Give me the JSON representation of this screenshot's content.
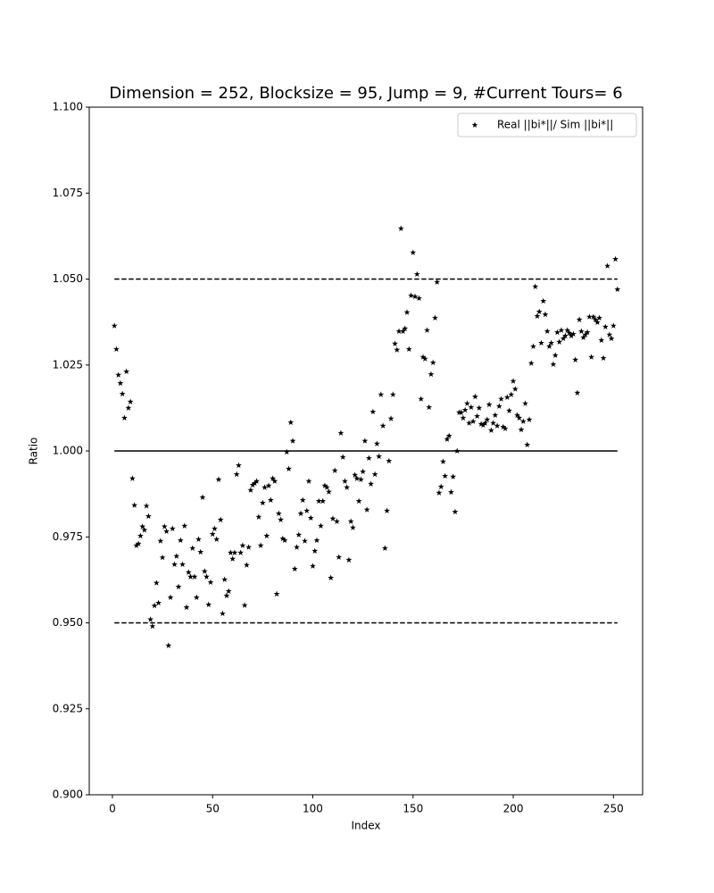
{
  "chart_data": {
    "type": "scatter",
    "title": "Dimension = 252, Blocksize = 95, Jump = 9, #Current Tours= 6",
    "x_label": "Index",
    "y_label": "Ratio",
    "xlim": [
      -11.55,
      264.55
    ],
    "ylim": [
      0.9,
      1.1
    ],
    "xticks": [
      0,
      50,
      100,
      150,
      200,
      250
    ],
    "yticks": [
      {
        "value": 0.9,
        "label": "0.900"
      },
      {
        "value": 0.925,
        "label": "0.925"
      },
      {
        "value": 0.95,
        "label": "0.950"
      },
      {
        "value": 0.975,
        "label": "0.975"
      },
      {
        "value": 1.0,
        "label": "1.000"
      },
      {
        "value": 1.025,
        "label": "1.025"
      },
      {
        "value": 1.05,
        "label": "1.050"
      },
      {
        "value": 1.075,
        "label": "1.075"
      },
      {
        "value": 1.1,
        "label": "1.100"
      }
    ],
    "grid": false,
    "legend_position": "upper-right",
    "hlines": [
      {
        "y": 1.05,
        "xmin": 1,
        "xmax": 252,
        "style": "dashed",
        "color": "#000000"
      },
      {
        "y": 1.0,
        "xmin": 1,
        "xmax": 252,
        "style": "solid",
        "color": "#000000"
      },
      {
        "y": 0.95,
        "xmin": 1,
        "xmax": 252,
        "style": "dashed",
        "color": "#000000"
      }
    ],
    "x": [
      1,
      2,
      3,
      4,
      5,
      6,
      7,
      8,
      9,
      10,
      11,
      12,
      13,
      14,
      15,
      16,
      17,
      18,
      19,
      20,
      21,
      22,
      23,
      24,
      25,
      26,
      27,
      28,
      29,
      30,
      31,
      32,
      33,
      34,
      35,
      36,
      37,
      38,
      39,
      40,
      41,
      42,
      43,
      44,
      45,
      46,
      47,
      48,
      49,
      50,
      51,
      52,
      53,
      54,
      55,
      56,
      57,
      58,
      59,
      60,
      61,
      62,
      63,
      64,
      65,
      66,
      67,
      68,
      69,
      70,
      71,
      72,
      73,
      74,
      75,
      76,
      77,
      78,
      79,
      80,
      81,
      82,
      83,
      84,
      85,
      86,
      87,
      88,
      89,
      90,
      91,
      92,
      93,
      94,
      95,
      96,
      97,
      98,
      99,
      100,
      101,
      102,
      103,
      104,
      105,
      106,
      107,
      108,
      109,
      110,
      111,
      112,
      113,
      114,
      115,
      116,
      117,
      118,
      119,
      120,
      121,
      122,
      123,
      124,
      125,
      126,
      127,
      128,
      129,
      130,
      131,
      132,
      133,
      134,
      135,
      136,
      137,
      138,
      139,
      140,
      141,
      142,
      143,
      144,
      145,
      146,
      147,
      148,
      149,
      150,
      151,
      152,
      153,
      154,
      155,
      156,
      157,
      158,
      159,
      160,
      161,
      162,
      163,
      164,
      165,
      166,
      167,
      168,
      169,
      170,
      171,
      172,
      173,
      174,
      175,
      176,
      177,
      178,
      179,
      180,
      181,
      182,
      183,
      184,
      185,
      186,
      187,
      188,
      189,
      190,
      191,
      192,
      193,
      194,
      195,
      196,
      197,
      198,
      199,
      200,
      201,
      202,
      203,
      204,
      205,
      206,
      207,
      208,
      209,
      210,
      211,
      212,
      213,
      214,
      215,
      216,
      217,
      218,
      219,
      220,
      221,
      222,
      223,
      224,
      225,
      226,
      227,
      228,
      229,
      230,
      231,
      232,
      233,
      234,
      235,
      236,
      237,
      238,
      239,
      240,
      241,
      242,
      243,
      244,
      245,
      246,
      247,
      248,
      249,
      250,
      251,
      252
    ],
    "series": [
      {
        "name": "Real ||bi*||/ Sim ||bi*||",
        "color": "#000000",
        "marker": "star",
        "values": [
          1.0364,
          1.0296,
          1.0221,
          1.0197,
          1.0166,
          1.0096,
          1.0231,
          1.0125,
          1.0143,
          0.992,
          0.9842,
          0.9725,
          0.973,
          0.9753,
          0.978,
          0.977,
          0.984,
          0.981,
          0.951,
          0.949,
          0.955,
          0.9616,
          0.9558,
          0.9738,
          0.969,
          0.978,
          0.9766,
          0.9434,
          0.9574,
          0.9774,
          0.967,
          0.9694,
          0.9605,
          0.974,
          0.967,
          0.9782,
          0.9545,
          0.9647,
          0.9634,
          0.9717,
          0.9634,
          0.9574,
          0.9743,
          0.9706,
          0.9865,
          0.965,
          0.9634,
          0.9553,
          0.9618,
          0.9758,
          0.9774,
          0.9743,
          0.9917,
          0.98,
          0.9527,
          0.9626,
          0.9579,
          0.9592,
          0.9704,
          0.9686,
          0.9704,
          0.9932,
          0.9958,
          0.9704,
          0.9725,
          0.9551,
          0.9668,
          0.972,
          0.9886,
          0.9901,
          0.9906,
          0.9912,
          0.9808,
          0.9725,
          0.9849,
          0.9894,
          0.9753,
          0.9899,
          0.9857,
          0.992,
          0.9912,
          0.9584,
          0.9818,
          0.98,
          0.9745,
          0.974,
          0.9997,
          0.9948,
          1.0083,
          1.0029,
          0.9657,
          0.972,
          0.9756,
          0.9818,
          0.9857,
          0.9738,
          0.9826,
          0.9912,
          0.9805,
          0.9665,
          0.9709,
          0.974,
          0.9854,
          0.9782,
          0.9854,
          0.9899,
          0.9894,
          0.9881,
          0.9631,
          0.9803,
          0.9943,
          0.9795,
          0.9691,
          1.0052,
          0.9982,
          0.9912,
          0.9894,
          0.9683,
          0.9795,
          0.9777,
          0.993,
          0.992,
          0.9854,
          0.9917,
          0.994,
          1.0029,
          0.9829,
          0.9979,
          0.9904,
          1.0114,
          0.9932,
          1.0021,
          0.9984,
          1.0164,
          1.0073,
          0.9717,
          0.9826,
          0.9971,
          1.0094,
          1.0164,
          1.0312,
          1.0294,
          1.0348,
          1.0647,
          1.0348,
          1.0356,
          1.0403,
          1.0296,
          1.0452,
          1.0577,
          1.0449,
          1.0514,
          1.0444,
          1.0151,
          1.0273,
          1.0268,
          1.0351,
          1.0127,
          1.0223,
          1.0257,
          1.0387,
          1.0491,
          0.9878,
          0.9896,
          0.9969,
          0.9927,
          1.0034,
          1.0044,
          0.988,
          0.9925,
          0.9823,
          1.0,
          1.0112,
          1.0112,
          1.0096,
          1.0119,
          1.0138,
          1.0081,
          1.0127,
          1.0086,
          1.0158,
          1.0101,
          1.0125,
          1.0078,
          1.0075,
          1.0081,
          1.0091,
          1.0135,
          1.006,
          1.0081,
          1.0104,
          1.0073,
          1.013,
          1.0151,
          1.007,
          1.0065,
          1.0156,
          1.0117,
          1.0164,
          1.0203,
          1.018,
          1.0104,
          1.0096,
          1.0062,
          1.0086,
          1.0138,
          1.0018,
          1.0091,
          1.0255,
          1.0304,
          1.0478,
          1.0392,
          1.0405,
          1.0314,
          1.0436,
          1.0397,
          1.0348,
          1.0304,
          1.0314,
          1.0252,
          1.0278,
          1.0345,
          1.0317,
          1.0351,
          1.0327,
          1.0335,
          1.0351,
          1.0343,
          1.0335,
          1.034,
          1.0265,
          1.0169,
          1.0382,
          1.0348,
          1.033,
          1.0338,
          1.0345,
          1.039,
          1.0273,
          1.039,
          1.0382,
          1.0374,
          1.0387,
          1.0322,
          1.027,
          1.0361,
          1.0538,
          1.0338,
          1.0327,
          1.0364,
          1.0558,
          1.047
        ]
      }
    ]
  }
}
